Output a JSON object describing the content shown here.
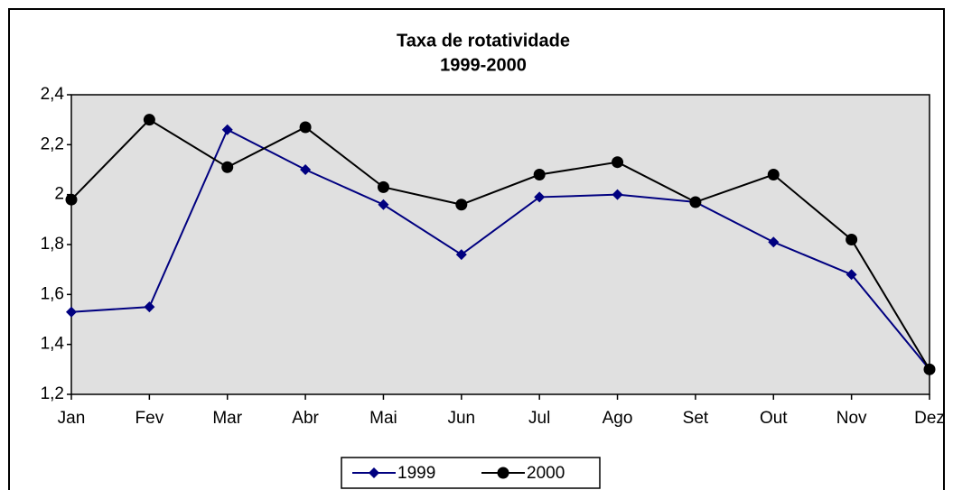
{
  "chart_data": {
    "type": "line",
    "title": "Taxa de rotatividade",
    "subtitle": "1999-2000",
    "categories": [
      "Jan",
      "Fev",
      "Mar",
      "Abr",
      "Mai",
      "Jun",
      "Jul",
      "Ago",
      "Set",
      "Out",
      "Nov",
      "Dez"
    ],
    "series": [
      {
        "name": "1999",
        "color": "#000080",
        "marker": "diamond",
        "values": [
          1.53,
          1.55,
          2.26,
          2.1,
          1.96,
          1.76,
          1.99,
          2.0,
          1.97,
          1.81,
          1.68,
          1.3
        ]
      },
      {
        "name": "2000",
        "color": "#000000",
        "marker": "circle",
        "values": [
          1.98,
          2.3,
          2.11,
          2.27,
          2.03,
          1.96,
          2.08,
          2.13,
          1.97,
          2.08,
          1.82,
          1.3
        ]
      }
    ],
    "ylim": [
      1.2,
      2.4
    ],
    "yticks": [
      {
        "value": 1.2,
        "label": "1,2"
      },
      {
        "value": 1.4,
        "label": "1,4"
      },
      {
        "value": 1.6,
        "label": "1,6"
      },
      {
        "value": 1.8,
        "label": "1,8"
      },
      2,
      {
        "value": 2.2,
        "label": "2,2"
      },
      {
        "value": 2.4,
        "label": "2,4"
      }
    ],
    "grid": false,
    "legend": "bottom"
  }
}
